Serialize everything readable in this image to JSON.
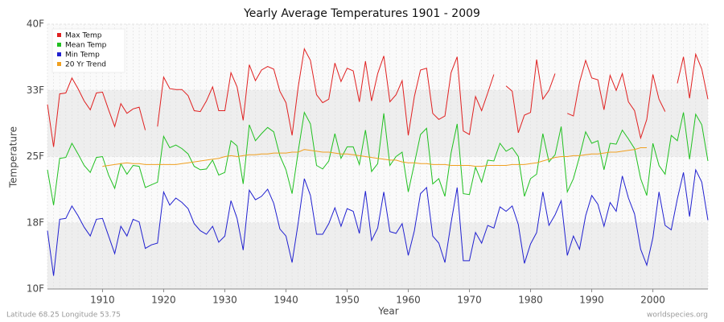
{
  "chart_data": {
    "type": "line",
    "title": "Yearly Average Temperatures 1901 - 2009",
    "x_label": "Year",
    "y_label": "Temperature",
    "footer_left": "Latitude 68.25 Longitude 53.75",
    "footer_right": "worldspecies.org",
    "legend": "top-left",
    "grid": true,
    "xlim": [
      1901,
      2009
    ],
    "xticks": [
      1910,
      1920,
      1930,
      1940,
      1950,
      1960,
      1970,
      1980,
      1990,
      2000
    ],
    "ylim": [
      10,
      40
    ],
    "yticks": [
      {
        "value": 10,
        "label": "10F"
      },
      {
        "value": 17.5,
        "label": "18F"
      },
      {
        "value": 25,
        "label": "25F"
      },
      {
        "value": 32.5,
        "label": "33F"
      },
      {
        "value": 40,
        "label": "40F"
      }
    ],
    "x": [
      1901,
      1902,
      1903,
      1904,
      1905,
      1906,
      1907,
      1908,
      1909,
      1910,
      1911,
      1912,
      1913,
      1914,
      1915,
      1916,
      1917,
      1918,
      1919,
      1920,
      1921,
      1922,
      1923,
      1924,
      1925,
      1926,
      1927,
      1928,
      1929,
      1930,
      1931,
      1932,
      1933,
      1934,
      1935,
      1936,
      1937,
      1938,
      1939,
      1940,
      1941,
      1942,
      1943,
      1944,
      1945,
      1946,
      1947,
      1948,
      1949,
      1950,
      1951,
      1952,
      1953,
      1954,
      1955,
      1956,
      1957,
      1958,
      1959,
      1960,
      1961,
      1962,
      1963,
      1964,
      1965,
      1966,
      1967,
      1968,
      1969,
      1970,
      1971,
      1972,
      1973,
      1974,
      1975,
      1976,
      1977,
      1978,
      1979,
      1980,
      1981,
      1982,
      1983,
      1984,
      1985,
      1986,
      1987,
      1988,
      1989,
      1990,
      1991,
      1992,
      1993,
      1994,
      1995,
      1996,
      1997,
      1998,
      1999,
      2000,
      2001,
      2002,
      2003,
      2004,
      2005,
      2006,
      2007,
      2008,
      2009
    ],
    "series": [
      {
        "name": "Max Temp",
        "color": "#e02020",
        "values": [
          30.9,
          26.1,
          32.1,
          32.2,
          33.9,
          32.7,
          31.3,
          30.3,
          32.2,
          32.3,
          30.3,
          28.4,
          31.0,
          29.9,
          30.4,
          30.6,
          28.0,
          null,
          28.4,
          34.0,
          32.7,
          32.6,
          32.6,
          31.9,
          30.2,
          30.1,
          31.3,
          32.9,
          30.2,
          30.2,
          34.5,
          32.9,
          29.1,
          35.4,
          33.6,
          34.8,
          35.2,
          34.9,
          32.4,
          31.1,
          27.4,
          32.9,
          37.2,
          35.9,
          32.0,
          31.1,
          31.5,
          35.6,
          33.5,
          35.0,
          34.7,
          31.2,
          35.8,
          31.3,
          34.4,
          36.4,
          31.2,
          32.0,
          33.6,
          27.4,
          31.8,
          34.8,
          35.0,
          29.9,
          29.2,
          29.6,
          34.5,
          36.3,
          27.9,
          27.5,
          31.8,
          30.2,
          32.2,
          34.3,
          null,
          33.0,
          32.4,
          27.7,
          29.7,
          30.0,
          36.0,
          31.5,
          32.5,
          34.4,
          null,
          29.9,
          29.6,
          33.4,
          35.9,
          33.9,
          33.7,
          30.3,
          34.2,
          32.5,
          34.4,
          31.2,
          30.2,
          27.1,
          29.2,
          34.3,
          31.5,
          30.1,
          null,
          33.3,
          36.3,
          31.6,
          36.6,
          34.9,
          31.5
        ]
      },
      {
        "name": "Mean Temp",
        "color": "#20c020",
        "values": [
          23.5,
          19.5,
          24.8,
          24.9,
          26.5,
          25.3,
          24.0,
          23.2,
          24.9,
          25.0,
          22.9,
          21.4,
          24.2,
          23.0,
          24.0,
          23.9,
          21.5,
          21.8,
          22.1,
          27.3,
          26.0,
          26.3,
          25.9,
          25.3,
          23.9,
          23.5,
          23.6,
          24.6,
          22.9,
          23.2,
          26.8,
          26.2,
          21.9,
          28.6,
          26.8,
          27.6,
          28.3,
          27.8,
          25.1,
          23.5,
          20.8,
          25.6,
          30.0,
          28.7,
          24.0,
          23.6,
          24.5,
          27.6,
          24.8,
          26.1,
          26.1,
          24.1,
          28.0,
          23.3,
          24.2,
          29.9,
          24.0,
          25.0,
          25.5,
          21.0,
          24.2,
          27.5,
          28.2,
          21.9,
          22.5,
          20.5,
          25.4,
          28.7,
          20.8,
          20.7,
          23.8,
          22.1,
          24.6,
          24.5,
          26.5,
          25.6,
          26.0,
          25.0,
          20.5,
          22.5,
          23.0,
          27.6,
          24.4,
          25.2,
          28.4,
          21.0,
          22.5,
          25.0,
          27.8,
          26.5,
          26.8,
          23.5,
          26.5,
          26.4,
          28.0,
          27.0,
          25.9,
          22.5,
          20.6,
          26.5,
          24.0,
          23.0,
          27.4,
          26.8,
          30.0,
          24.7,
          29.8,
          28.6,
          24.5
        ]
      },
      {
        "name": "Min Temp",
        "color": "#2020d0",
        "values": [
          16.6,
          11.5,
          17.9,
          18.0,
          19.4,
          18.3,
          17.0,
          16.0,
          17.9,
          18.0,
          16.0,
          14.0,
          17.1,
          16.0,
          17.9,
          17.6,
          14.6,
          15.0,
          15.2,
          21.0,
          19.5,
          20.3,
          19.8,
          19.1,
          17.4,
          16.6,
          16.2,
          17.1,
          15.3,
          16.0,
          20.0,
          18.0,
          14.4,
          21.2,
          20.1,
          20.5,
          21.3,
          19.7,
          16.8,
          16.0,
          13.0,
          17.5,
          22.5,
          20.6,
          16.2,
          16.2,
          17.4,
          19.2,
          17.1,
          19.1,
          18.8,
          16.3,
          21.1,
          15.5,
          16.9,
          21.0,
          16.5,
          16.3,
          17.4,
          13.8,
          16.6,
          20.8,
          21.5,
          16.0,
          15.2,
          13.0,
          17.5,
          21.5,
          13.2,
          13.2,
          16.4,
          15.2,
          17.2,
          16.9,
          19.3,
          18.8,
          19.4,
          17.3,
          12.9,
          15.1,
          16.4,
          21.0,
          17.2,
          18.4,
          20.0,
          13.8,
          16.0,
          14.5,
          18.3,
          20.6,
          19.6,
          17.1,
          19.8,
          18.8,
          22.8,
          20.3,
          18.5,
          14.5,
          12.7,
          15.8,
          21.0,
          17.2,
          16.7,
          20.2,
          23.2,
          18.2,
          23.5,
          22.1,
          17.8
        ]
      },
      {
        "name": "20 Yr Trend",
        "color": "#f0a020",
        "values": [
          null,
          null,
          null,
          null,
          null,
          null,
          null,
          null,
          null,
          23.9,
          24.0,
          24.1,
          24.2,
          24.3,
          24.2,
          24.2,
          24.1,
          24.1,
          24.1,
          24.1,
          24.1,
          24.1,
          24.2,
          24.3,
          24.4,
          24.5,
          24.6,
          24.7,
          24.8,
          25.0,
          25.1,
          25.0,
          25.1,
          25.2,
          25.2,
          25.3,
          25.3,
          25.4,
          25.4,
          25.4,
          25.5,
          25.5,
          25.8,
          25.7,
          25.6,
          25.5,
          25.5,
          25.4,
          25.3,
          25.3,
          25.2,
          25.1,
          25.0,
          24.9,
          24.8,
          24.7,
          24.6,
          24.6,
          24.4,
          24.3,
          24.3,
          24.2,
          24.2,
          24.1,
          24.1,
          24.1,
          24.0,
          24.0,
          24.0,
          24.0,
          23.9,
          23.9,
          24.0,
          24.0,
          24.0,
          24.0,
          24.1,
          24.1,
          24.1,
          24.2,
          24.3,
          24.5,
          24.7,
          24.9,
          25.0,
          25.0,
          25.1,
          25.1,
          25.2,
          25.3,
          25.3,
          25.4,
          25.5,
          25.5,
          25.6,
          25.7,
          25.8,
          26.0,
          26.0,
          null,
          null,
          null,
          null,
          null,
          null,
          null,
          null,
          null,
          null
        ]
      }
    ]
  }
}
